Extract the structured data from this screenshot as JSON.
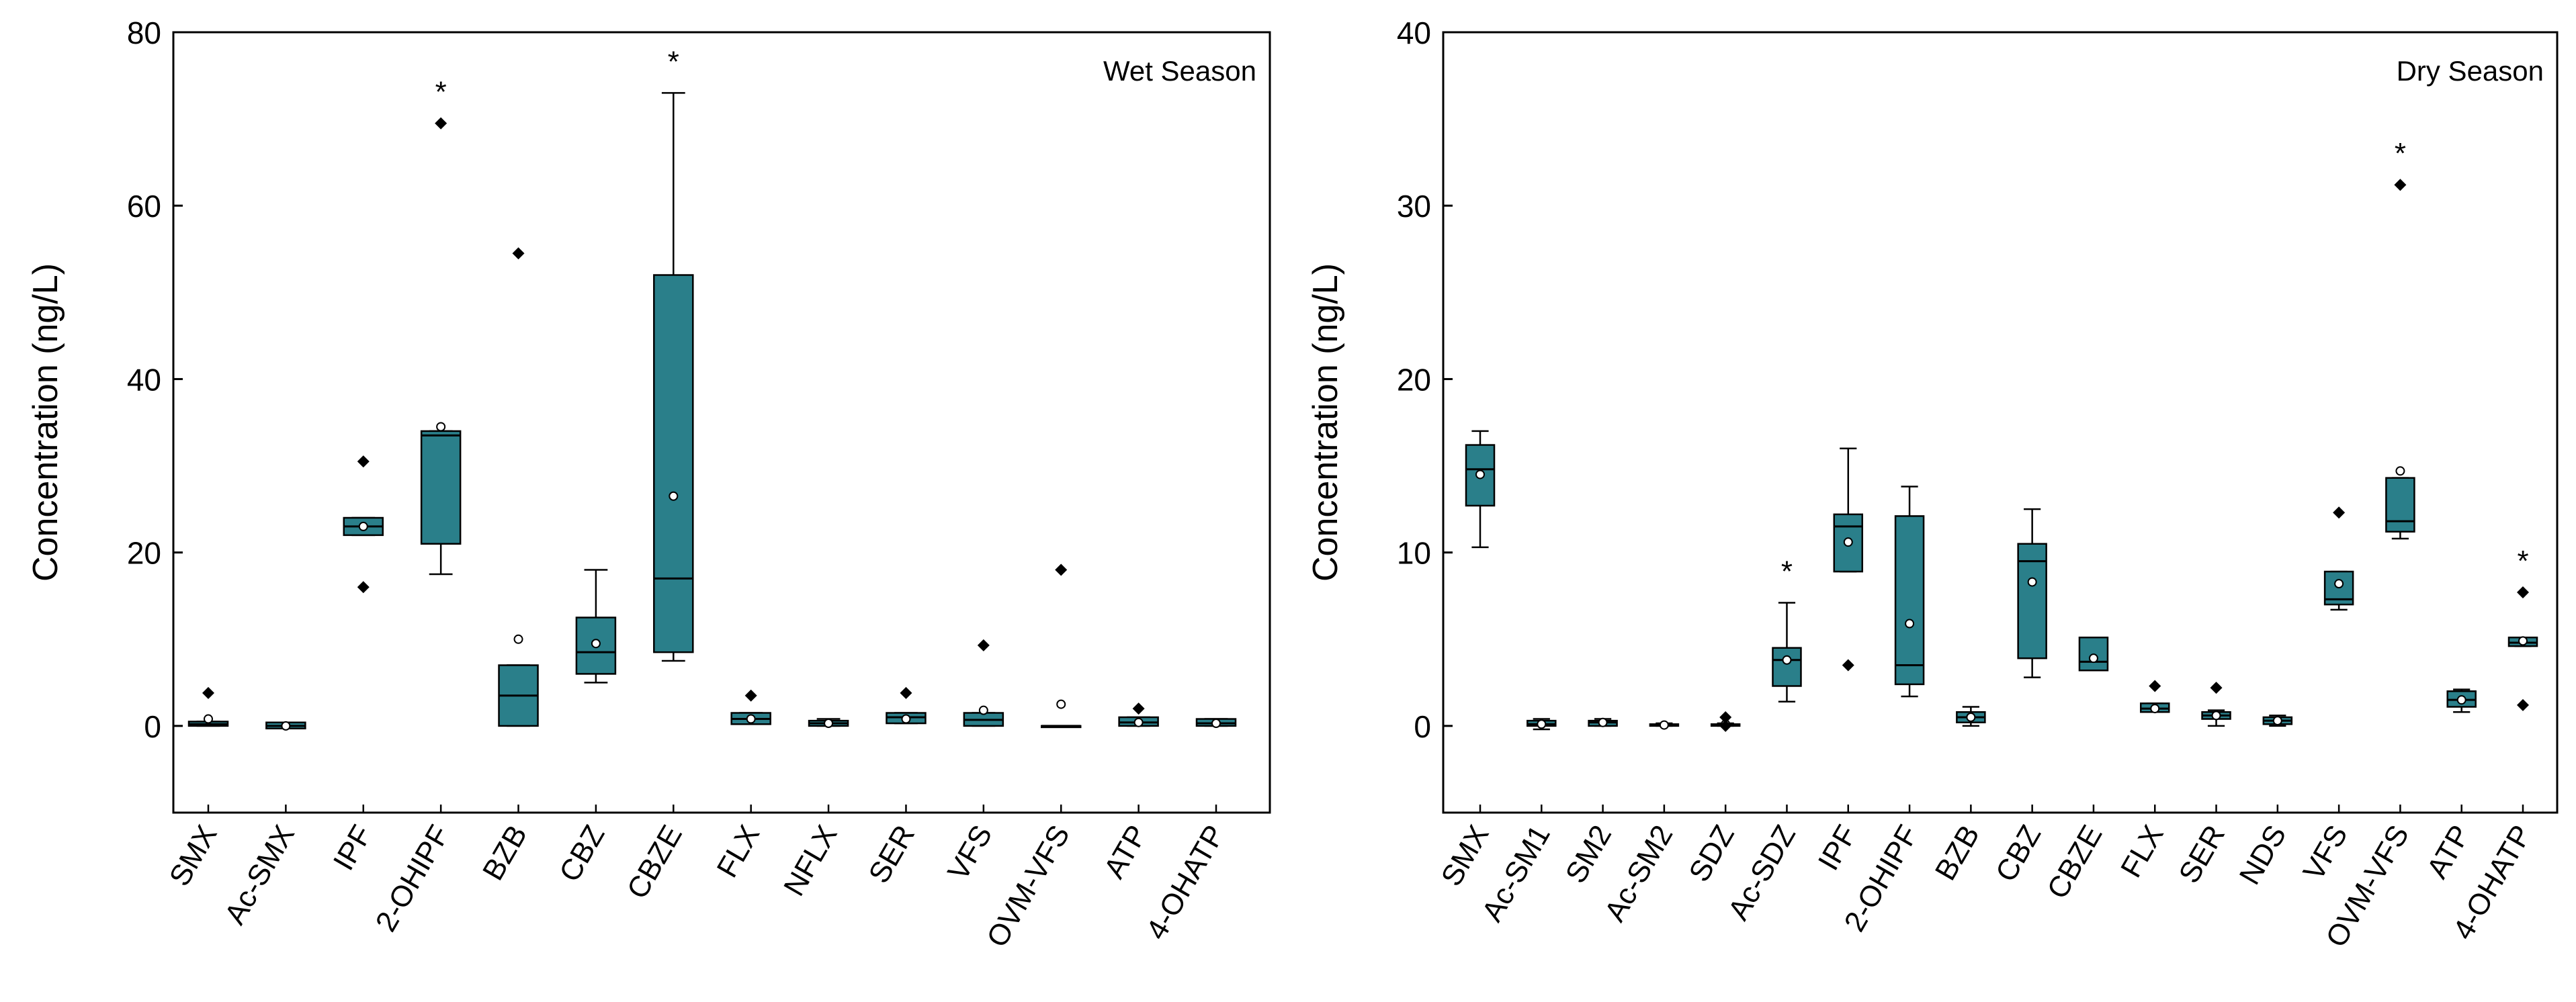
{
  "colors": {
    "box_fill": "#2a7f8a",
    "frame": "#000000",
    "background": "#ffffff"
  },
  "chart_data": [
    {
      "type": "box",
      "label": "Wet Season",
      "ylabel": "Concentration (ng/L)",
      "ylim": [
        -10,
        80
      ],
      "yticks": [
        0,
        20,
        40,
        60,
        80
      ],
      "categories": [
        "SMX",
        "Ac-SMX",
        "IPF",
        "2-OHIPF",
        "BZB",
        "CBZ",
        "CBZE",
        "FLX",
        "NFLX",
        "SER",
        "VFS",
        "OVM-VFS",
        "ATP",
        "4-OHATP"
      ],
      "boxes": [
        {
          "q1": 0.0,
          "median": 0.2,
          "q3": 0.5,
          "whisker_low": 0.0,
          "whisker_high": 0.5,
          "mean": 0.8,
          "outliers": [
            3.8
          ],
          "star": false
        },
        {
          "q1": -0.3,
          "median": 0.0,
          "q3": 0.4,
          "whisker_low": -0.3,
          "whisker_high": 0.4,
          "mean": 0.0,
          "outliers": [],
          "star": false
        },
        {
          "q1": 22.0,
          "median": 23.0,
          "q3": 24.0,
          "whisker_low": 22.0,
          "whisker_high": 24.0,
          "mean": 23.0,
          "outliers": [
            30.5,
            16.0
          ],
          "star": false
        },
        {
          "q1": 21.0,
          "median": 33.5,
          "q3": 34.0,
          "whisker_low": 17.5,
          "whisker_high": 34.0,
          "mean": 34.5,
          "outliers": [
            69.5
          ],
          "star": true
        },
        {
          "q1": 0.0,
          "median": 3.5,
          "q3": 7.0,
          "whisker_low": 0.0,
          "whisker_high": 7.0,
          "mean": 10.0,
          "outliers": [
            54.5
          ],
          "star": false
        },
        {
          "q1": 6.0,
          "median": 8.5,
          "q3": 12.5,
          "whisker_low": 5.0,
          "whisker_high": 18.0,
          "mean": 9.5,
          "outliers": [],
          "star": false
        },
        {
          "q1": 8.5,
          "median": 17.0,
          "q3": 52.0,
          "whisker_low": 7.5,
          "whisker_high": 73.0,
          "mean": 26.5,
          "outliers": [],
          "star": true
        },
        {
          "q1": 0.2,
          "median": 0.8,
          "q3": 1.5,
          "whisker_low": 0.2,
          "whisker_high": 1.5,
          "mean": 0.8,
          "outliers": [
            3.5
          ],
          "star": false
        },
        {
          "q1": 0.0,
          "median": 0.3,
          "q3": 0.6,
          "whisker_low": 0.0,
          "whisker_high": 0.8,
          "mean": 0.3,
          "outliers": [],
          "star": false
        },
        {
          "q1": 0.3,
          "median": 1.0,
          "q3": 1.5,
          "whisker_low": 0.3,
          "whisker_high": 1.5,
          "mean": 0.8,
          "outliers": [
            3.8
          ],
          "star": false
        },
        {
          "q1": 0.0,
          "median": 0.7,
          "q3": 1.5,
          "whisker_low": 0.0,
          "whisker_high": 1.5,
          "mean": 1.8,
          "outliers": [
            9.3
          ],
          "star": false
        },
        {
          "q1": 0.0,
          "median": 0.0,
          "q3": 0.0,
          "whisker_low": 0.0,
          "whisker_high": 0.0,
          "mean": 2.5,
          "outliers": [
            18.0
          ],
          "star": false
        },
        {
          "q1": 0.0,
          "median": 0.4,
          "q3": 1.0,
          "whisker_low": 0.0,
          "whisker_high": 1.0,
          "mean": 0.4,
          "outliers": [
            2.0
          ],
          "star": false
        },
        {
          "q1": 0.0,
          "median": 0.3,
          "q3": 0.8,
          "whisker_low": 0.0,
          "whisker_high": 0.8,
          "mean": 0.3,
          "outliers": [],
          "star": false
        }
      ]
    },
    {
      "type": "box",
      "label": "Dry Season",
      "ylabel": "Concentration (ng/L)",
      "ylim": [
        -5,
        40
      ],
      "yticks": [
        0,
        10,
        20,
        30,
        40
      ],
      "categories": [
        "SMX",
        "Ac-SM1",
        "SM2",
        "Ac-SM2",
        "SDZ",
        "Ac-SDZ",
        "IPF",
        "2-OHIPF",
        "BZB",
        "CBZ",
        "CBZE",
        "FLX",
        "SER",
        "NDS",
        "VFS",
        "OVM-VFS",
        "ATP",
        "4-OHATP"
      ],
      "boxes": [
        {
          "q1": 12.7,
          "median": 14.8,
          "q3": 16.2,
          "whisker_low": 10.3,
          "whisker_high": 17.0,
          "mean": 14.5,
          "outliers": [],
          "star": false
        },
        {
          "q1": 0.0,
          "median": 0.1,
          "q3": 0.3,
          "whisker_low": -0.2,
          "whisker_high": 0.4,
          "mean": 0.1,
          "outliers": [],
          "star": false
        },
        {
          "q1": 0.0,
          "median": 0.2,
          "q3": 0.3,
          "whisker_low": 0.0,
          "whisker_high": 0.4,
          "mean": 0.2,
          "outliers": [],
          "star": false
        },
        {
          "q1": 0.0,
          "median": 0.05,
          "q3": 0.1,
          "whisker_low": 0.0,
          "whisker_high": 0.15,
          "mean": 0.05,
          "outliers": [],
          "star": false
        },
        {
          "q1": 0.0,
          "median": 0.05,
          "q3": 0.1,
          "whisker_low": 0.0,
          "whisker_high": 0.15,
          "mean": 0.1,
          "outliers": [
            0.5,
            0.0
          ],
          "star": false
        },
        {
          "q1": 2.3,
          "median": 3.8,
          "q3": 4.5,
          "whisker_low": 1.4,
          "whisker_high": 7.1,
          "mean": 3.8,
          "outliers": [],
          "star": true
        },
        {
          "q1": 8.9,
          "median": 11.5,
          "q3": 12.2,
          "whisker_low": 8.9,
          "whisker_high": 16.0,
          "mean": 10.6,
          "outliers": [
            3.5
          ],
          "star": false
        },
        {
          "q1": 2.4,
          "median": 3.5,
          "q3": 12.1,
          "whisker_low": 1.7,
          "whisker_high": 13.8,
          "mean": 5.9,
          "outliers": [],
          "star": false
        },
        {
          "q1": 0.2,
          "median": 0.5,
          "q3": 0.8,
          "whisker_low": 0.0,
          "whisker_high": 1.1,
          "mean": 0.5,
          "outliers": [],
          "star": false
        },
        {
          "q1": 3.9,
          "median": 9.5,
          "q3": 10.5,
          "whisker_low": 2.8,
          "whisker_high": 12.5,
          "mean": 8.3,
          "outliers": [],
          "star": false
        },
        {
          "q1": 3.2,
          "median": 3.7,
          "q3": 5.1,
          "whisker_low": 3.2,
          "whisker_high": 5.1,
          "mean": 3.9,
          "outliers": [],
          "star": false
        },
        {
          "q1": 0.8,
          "median": 1.0,
          "q3": 1.3,
          "whisker_low": 0.8,
          "whisker_high": 1.3,
          "mean": 1.0,
          "outliers": [
            2.3
          ],
          "star": false
        },
        {
          "q1": 0.4,
          "median": 0.6,
          "q3": 0.8,
          "whisker_low": 0.0,
          "whisker_high": 0.9,
          "mean": 0.6,
          "outliers": [
            2.2
          ],
          "star": false
        },
        {
          "q1": 0.1,
          "median": 0.3,
          "q3": 0.5,
          "whisker_low": 0.0,
          "whisker_high": 0.6,
          "mean": 0.3,
          "outliers": [],
          "star": false
        },
        {
          "q1": 7.0,
          "median": 7.3,
          "q3": 8.9,
          "whisker_low": 6.7,
          "whisker_high": 8.9,
          "mean": 8.2,
          "outliers": [
            12.3
          ],
          "star": false
        },
        {
          "q1": 11.2,
          "median": 11.8,
          "q3": 14.3,
          "whisker_low": 10.8,
          "whisker_high": 14.3,
          "mean": 14.7,
          "outliers": [
            31.2
          ],
          "star": true
        },
        {
          "q1": 1.1,
          "median": 1.5,
          "q3": 2.0,
          "whisker_low": 0.8,
          "whisker_high": 2.1,
          "mean": 1.5,
          "outliers": [],
          "star": false
        },
        {
          "q1": 4.6,
          "median": 4.8,
          "q3": 5.1,
          "whisker_low": 4.6,
          "whisker_high": 5.1,
          "mean": 4.9,
          "outliers": [
            7.7,
            1.2
          ],
          "star": true
        }
      ]
    }
  ]
}
